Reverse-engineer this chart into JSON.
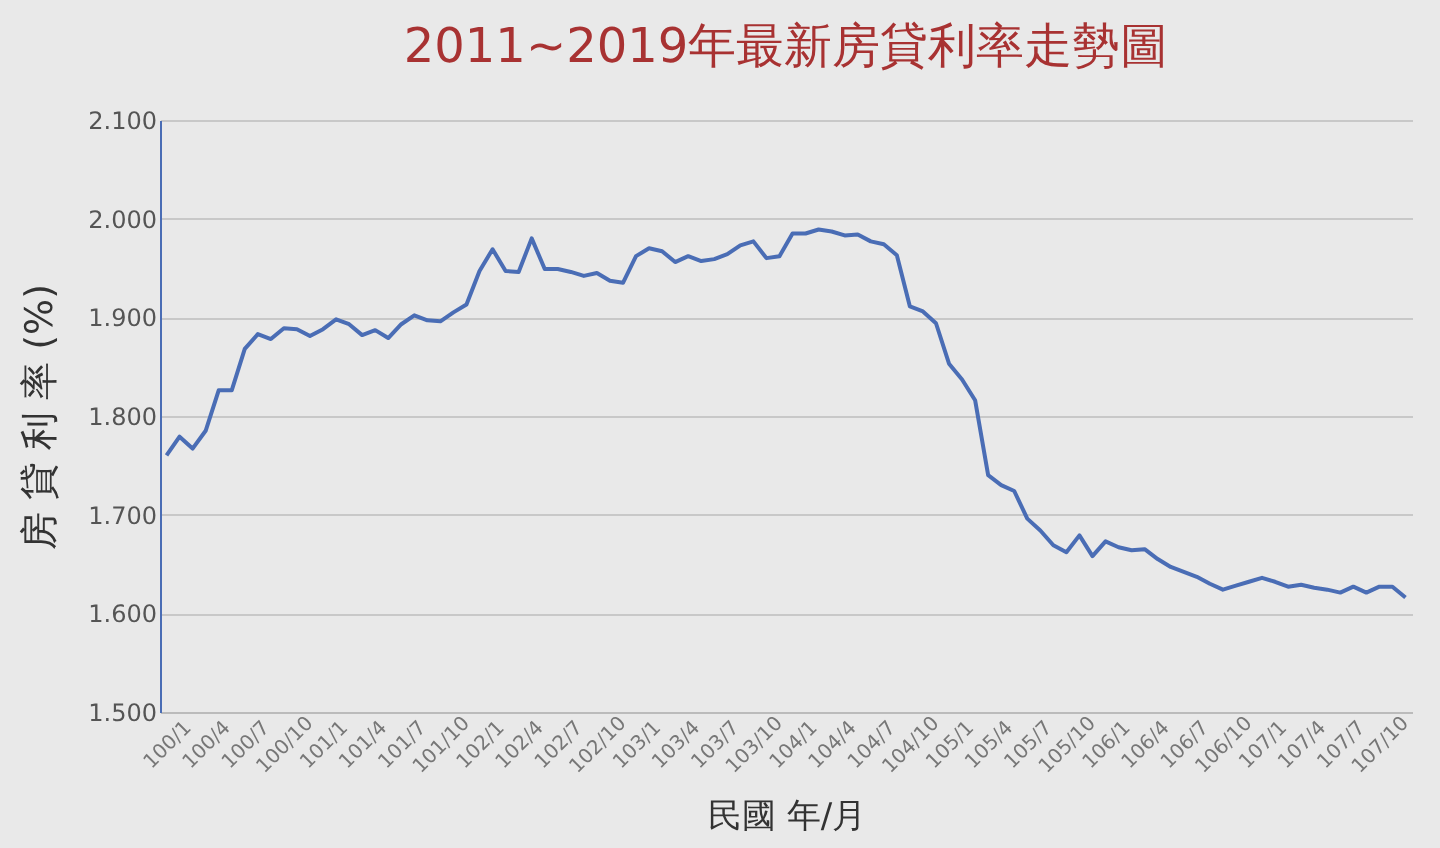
{
  "chart_data": {
    "type": "line",
    "title": "2011~2019年最新房貸利率走勢圖",
    "xlabel": "民國 年/月",
    "ylabel": "房 貸 利 率 (%)",
    "categories": [
      "100/1",
      null,
      null,
      "100/4",
      null,
      null,
      "100/7",
      null,
      null,
      "100/10",
      null,
      null,
      "101/1",
      null,
      null,
      "101/4",
      null,
      null,
      "101/7",
      null,
      null,
      "101/10",
      null,
      null,
      "102/1",
      null,
      null,
      "102/4",
      null,
      null,
      "102/7",
      null,
      null,
      "102/10",
      null,
      null,
      "103/1",
      null,
      null,
      "103/4",
      null,
      null,
      "103/7",
      null,
      null,
      "103/10",
      null,
      null,
      "104/1",
      null,
      null,
      "104/4",
      null,
      null,
      "104/7",
      null,
      null,
      "104/10",
      null,
      null,
      "105/1",
      null,
      null,
      "105/4",
      null,
      null,
      "105/7",
      null,
      null,
      "105/10",
      null,
      null,
      "106/1",
      null,
      null,
      "106/4",
      null,
      null,
      "106/7",
      null,
      null,
      "106/10",
      null,
      null,
      "107/1",
      null,
      null,
      "107/4",
      null,
      null,
      "107/7",
      null,
      null,
      "107/10",
      null,
      null
    ],
    "series": [
      {
        "color": "#4a6db5",
        "values": [
          1.76,
          1.779,
          1.767,
          1.785,
          1.826,
          1.826,
          1.868,
          1.883,
          1.878,
          1.889,
          1.888,
          1.881,
          1.888,
          1.898,
          1.893,
          1.882,
          1.887,
          1.879,
          1.893,
          1.902,
          1.897,
          1.896,
          1.905,
          1.913,
          1.947,
          1.969,
          1.947,
          1.946,
          1.98,
          1.949,
          1.949,
          1.946,
          1.942,
          1.945,
          1.937,
          1.935,
          1.962,
          1.97,
          1.967,
          1.956,
          1.962,
          1.957,
          1.959,
          1.964,
          1.973,
          1.977,
          1.96,
          1.962,
          1.985,
          1.985,
          1.989,
          1.987,
          1.983,
          1.984,
          1.977,
          1.974,
          1.963,
          1.911,
          1.906,
          1.894,
          1.853,
          1.837,
          1.816,
          1.74,
          1.73,
          1.724,
          1.696,
          1.684,
          1.669,
          1.662,
          1.679,
          1.658,
          1.673,
          1.667,
          1.664,
          1.665,
          1.655,
          1.647,
          1.642,
          1.637,
          1.63,
          1.624,
          1.628,
          1.632,
          1.636,
          1.632,
          1.627,
          1.629,
          1.626,
          1.624,
          1.621,
          1.627,
          1.621,
          1.627,
          1.627,
          1.616
        ]
      }
    ],
    "ylim": [
      1.5,
      2.1
    ],
    "yticks": [
      {
        "value": 1.5,
        "label": "1.500"
      },
      {
        "value": 1.6,
        "label": "1.600"
      },
      {
        "value": 1.7,
        "label": "1.700"
      },
      {
        "value": 1.8,
        "label": "1.800"
      },
      {
        "value": 1.9,
        "label": "1.900"
      },
      {
        "value": 2.0,
        "label": "2.000"
      },
      {
        "value": 2.1,
        "label": "2.100"
      }
    ],
    "grid": "y",
    "marker": "none",
    "line_style": "solid"
  }
}
